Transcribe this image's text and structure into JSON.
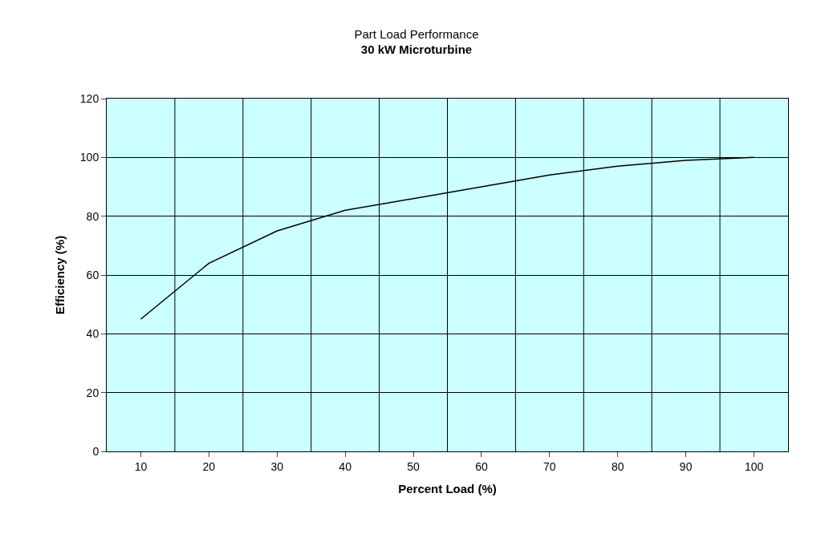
{
  "chart_data": {
    "type": "line",
    "title": "Part Load Performance",
    "subtitle": "30 kW Microturbine",
    "xlabel": "Percent Load (%)",
    "ylabel": "Efficiency (%)",
    "categories": [
      "10",
      "20",
      "30",
      "40",
      "50",
      "60",
      "70",
      "80",
      "90",
      "100"
    ],
    "series": [
      {
        "color": "#000000",
        "values": [
          45,
          64,
          75,
          82,
          86,
          90,
          94,
          97,
          99,
          100
        ]
      }
    ],
    "ylim": [
      0,
      120
    ],
    "yticks": [
      0,
      20,
      40,
      60,
      80,
      100,
      120
    ],
    "grid": true,
    "marker": "none",
    "line_style": "solid"
  }
}
